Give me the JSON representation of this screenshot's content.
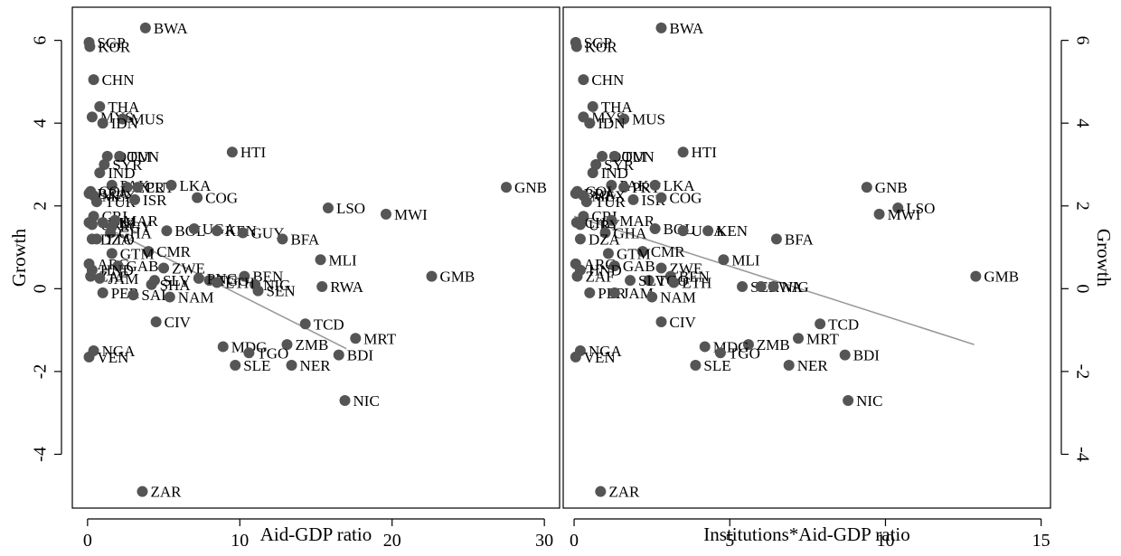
{
  "chart_data": [
    {
      "type": "scatter",
      "title": "",
      "xlabel": "Aid-GDP ratio",
      "ylabel": "Growth",
      "xlim": [
        -1,
        31
      ],
      "ylim": [
        -5.3,
        6.8
      ],
      "xticks": [
        0,
        10,
        20,
        30
      ],
      "yticks": [
        6,
        4,
        2,
        0,
        -2,
        -4
      ],
      "fit_line": {
        "x": [
          0,
          17
        ],
        "y": [
          1.7,
          -1.45
        ]
      },
      "points": [
        {
          "label": "BWA",
          "x": 3.8,
          "y": 6.3
        },
        {
          "label": "SGP",
          "x": 0.1,
          "y": 5.95
        },
        {
          "label": "KOR",
          "x": 0.15,
          "y": 5.85
        },
        {
          "label": "CHN",
          "x": 0.4,
          "y": 5.05
        },
        {
          "label": "THA",
          "x": 0.8,
          "y": 4.4
        },
        {
          "label": "MYS",
          "x": 0.3,
          "y": 4.15
        },
        {
          "label": "MUS",
          "x": 2.3,
          "y": 4.1
        },
        {
          "label": "IDN",
          "x": 1.0,
          "y": 4.0
        },
        {
          "label": "HTI",
          "x": 9.5,
          "y": 3.3
        },
        {
          "label": "DOM",
          "x": 1.3,
          "y": 3.2
        },
        {
          "label": "TUN",
          "x": 2.1,
          "y": 3.2
        },
        {
          "label": "SYR",
          "x": 1.1,
          "y": 3.0
        },
        {
          "label": "IND",
          "x": 0.8,
          "y": 2.8
        },
        {
          "label": "PAK",
          "x": 1.6,
          "y": 2.5
        },
        {
          "label": "ECU",
          "x": 2.6,
          "y": 2.45
        },
        {
          "label": "PRY",
          "x": 3.3,
          "y": 2.45
        },
        {
          "label": "LKA",
          "x": 5.5,
          "y": 2.5
        },
        {
          "label": "GNB",
          "x": 27.5,
          "y": 2.45
        },
        {
          "label": "COL",
          "x": 0.2,
          "y": 2.35
        },
        {
          "label": "BRA",
          "x": 0.1,
          "y": 2.3
        },
        {
          "label": "MEX",
          "x": 0.4,
          "y": 2.25
        },
        {
          "label": "TUR",
          "x": 0.6,
          "y": 2.1
        },
        {
          "label": "ISR",
          "x": 3.1,
          "y": 2.15
        },
        {
          "label": "COG",
          "x": 7.2,
          "y": 2.2
        },
        {
          "label": "LSO",
          "x": 15.8,
          "y": 1.95
        },
        {
          "label": "MWI",
          "x": 19.6,
          "y": 1.8
        },
        {
          "label": "CRI",
          "x": 0.4,
          "y": 1.75
        },
        {
          "label": "CHL",
          "x": 0.1,
          "y": 1.6
        },
        {
          "label": "URY",
          "x": 0.3,
          "y": 1.55
        },
        {
          "label": "PHL",
          "x": 1.0,
          "y": 1.6
        },
        {
          "label": "MAR",
          "x": 1.8,
          "y": 1.65
        },
        {
          "label": "EGY",
          "x": 1.6,
          "y": 1.5
        },
        {
          "label": "BOL",
          "x": 5.2,
          "y": 1.4
        },
        {
          "label": "UGA",
          "x": 7.0,
          "y": 1.45
        },
        {
          "label": "KEN",
          "x": 8.5,
          "y": 1.4
        },
        {
          "label": "GUY",
          "x": 10.2,
          "y": 1.35
        },
        {
          "label": "BFA",
          "x": 12.8,
          "y": 1.2
        },
        {
          "label": "GHA",
          "x": 1.5,
          "y": 1.35
        },
        {
          "label": "DZA",
          "x": 0.3,
          "y": 1.2
        },
        {
          "label": "TTO",
          "x": 0.6,
          "y": 1.2
        },
        {
          "label": "CMR",
          "x": 4.0,
          "y": 0.9
        },
        {
          "label": "GTM",
          "x": 1.6,
          "y": 0.85
        },
        {
          "label": "MLI",
          "x": 15.3,
          "y": 0.7
        },
        {
          "label": "ARG",
          "x": 0.1,
          "y": 0.6
        },
        {
          "label": "GAB",
          "x": 2.0,
          "y": 0.55
        },
        {
          "label": "ZWE",
          "x": 5.0,
          "y": 0.5
        },
        {
          "label": "HND",
          "x": 0.3,
          "y": 0.45
        },
        {
          "label": "ZAF",
          "x": 0.2,
          "y": 0.3
        },
        {
          "label": "JAM",
          "x": 0.8,
          "y": 0.25
        },
        {
          "label": "GMB",
          "x": 22.6,
          "y": 0.3
        },
        {
          "label": "TGO",
          "x": 8.0,
          "y": 0.2
        },
        {
          "label": "BEN",
          "x": 10.3,
          "y": 0.3
        },
        {
          "label": "PNG",
          "x": 7.3,
          "y": 0.25
        },
        {
          "label": "NIG",
          "x": 11.0,
          "y": 0.1
        },
        {
          "label": "ETH",
          "x": 8.5,
          "y": 0.15
        },
        {
          "label": "SLV",
          "x": 4.4,
          "y": 0.2
        },
        {
          "label": "SHA",
          "x": 4.2,
          "y": 0.1
        },
        {
          "label": "RWA",
          "x": 15.4,
          "y": 0.05
        },
        {
          "label": "SEN",
          "x": 11.2,
          "y": -0.05
        },
        {
          "label": "PER",
          "x": 1.0,
          "y": -0.1
        },
        {
          "label": "SAL",
          "x": 3.0,
          "y": -0.15
        },
        {
          "label": "NAM",
          "x": 5.4,
          "y": -0.2
        },
        {
          "label": "CIV",
          "x": 4.5,
          "y": -0.8
        },
        {
          "label": "TCD",
          "x": 14.3,
          "y": -0.85
        },
        {
          "label": "MRT",
          "x": 17.6,
          "y": -1.2
        },
        {
          "label": "ZMB",
          "x": 13.1,
          "y": -1.35
        },
        {
          "label": "MDG",
          "x": 8.9,
          "y": -1.4
        },
        {
          "label": "TGO",
          "x": 10.6,
          "y": -1.55
        },
        {
          "label": "BDI",
          "x": 16.5,
          "y": -1.6
        },
        {
          "label": "NGA",
          "x": 0.4,
          "y": -1.5
        },
        {
          "label": "VEN",
          "x": 0.1,
          "y": -1.65
        },
        {
          "label": "SLE",
          "x": 9.7,
          "y": -1.85
        },
        {
          "label": "NER",
          "x": 13.4,
          "y": -1.85
        },
        {
          "label": "NIC",
          "x": 16.9,
          "y": -2.7
        },
        {
          "label": "ZAR",
          "x": 3.6,
          "y": -4.9
        }
      ]
    },
    {
      "type": "scatter",
      "title": "",
      "xlabel": "Institutions*Aid-GDP ratio",
      "ylabel": "Growth",
      "xlim": [
        -0.35,
        15.3
      ],
      "ylim": [
        -5.3,
        6.8
      ],
      "xticks": [
        0,
        5,
        10,
        15
      ],
      "yticks": [
        6,
        4,
        2,
        0,
        -2,
        -4
      ],
      "fit_line": {
        "x": [
          0,
          12.85
        ],
        "y": [
          1.75,
          -1.35
        ]
      },
      "points": [
        {
          "label": "BWA",
          "x": 2.8,
          "y": 6.3
        },
        {
          "label": "SGP",
          "x": 0.05,
          "y": 5.95
        },
        {
          "label": "KOR",
          "x": 0.08,
          "y": 5.85
        },
        {
          "label": "CHN",
          "x": 0.3,
          "y": 5.05
        },
        {
          "label": "THA",
          "x": 0.6,
          "y": 4.4
        },
        {
          "label": "MYS",
          "x": 0.3,
          "y": 4.15
        },
        {
          "label": "MUS",
          "x": 1.6,
          "y": 4.1
        },
        {
          "label": "IDN",
          "x": 0.5,
          "y": 4.0
        },
        {
          "label": "HTI",
          "x": 3.5,
          "y": 3.3
        },
        {
          "label": "DOM",
          "x": 0.9,
          "y": 3.2
        },
        {
          "label": "TUN",
          "x": 1.3,
          "y": 3.2
        },
        {
          "label": "SYR",
          "x": 0.7,
          "y": 3.0
        },
        {
          "label": "IND",
          "x": 0.6,
          "y": 2.8
        },
        {
          "label": "GNB",
          "x": 9.4,
          "y": 2.45
        },
        {
          "label": "PAK",
          "x": 1.2,
          "y": 2.5
        },
        {
          "label": "PRY",
          "x": 1.6,
          "y": 2.45
        },
        {
          "label": "LKA",
          "x": 2.6,
          "y": 2.5
        },
        {
          "label": "COL",
          "x": 0.1,
          "y": 2.35
        },
        {
          "label": "BRA",
          "x": 0.05,
          "y": 2.3
        },
        {
          "label": "MEX",
          "x": 0.3,
          "y": 2.25
        },
        {
          "label": "TUR",
          "x": 0.4,
          "y": 2.1
        },
        {
          "label": "ISR",
          "x": 1.9,
          "y": 2.15
        },
        {
          "label": "COG",
          "x": 2.8,
          "y": 2.2
        },
        {
          "label": "LSO",
          "x": 10.4,
          "y": 1.95
        },
        {
          "label": "MWI",
          "x": 9.8,
          "y": 1.8
        },
        {
          "label": "CRI",
          "x": 0.3,
          "y": 1.75
        },
        {
          "label": "CHL",
          "x": 0.08,
          "y": 1.6
        },
        {
          "label": "MAR",
          "x": 1.2,
          "y": 1.65
        },
        {
          "label": "URY",
          "x": 0.2,
          "y": 1.55
        },
        {
          "label": "BOL",
          "x": 2.6,
          "y": 1.45
        },
        {
          "label": "UGA",
          "x": 3.5,
          "y": 1.4
        },
        {
          "label": "KEN",
          "x": 4.3,
          "y": 1.4
        },
        {
          "label": "BFA",
          "x": 6.5,
          "y": 1.2
        },
        {
          "label": "GHA",
          "x": 1.0,
          "y": 1.35
        },
        {
          "label": "DZA",
          "x": 0.2,
          "y": 1.2
        },
        {
          "label": "CMR",
          "x": 2.2,
          "y": 0.9
        },
        {
          "label": "GTM",
          "x": 1.1,
          "y": 0.85
        },
        {
          "label": "MLI",
          "x": 4.8,
          "y": 0.7
        },
        {
          "label": "ARG",
          "x": 0.05,
          "y": 0.6
        },
        {
          "label": "GAB",
          "x": 1.3,
          "y": 0.55
        },
        {
          "label": "ZWE",
          "x": 2.8,
          "y": 0.5
        },
        {
          "label": "HND",
          "x": 0.2,
          "y": 0.45
        },
        {
          "label": "ZAF",
          "x": 0.1,
          "y": 0.3
        },
        {
          "label": "GMB",
          "x": 12.9,
          "y": 0.3
        },
        {
          "label": "BEN",
          "x": 3.1,
          "y": 0.3
        },
        {
          "label": "TGO",
          "x": 2.4,
          "y": 0.2
        },
        {
          "label": "ETH",
          "x": 3.2,
          "y": 0.15
        },
        {
          "label": "SLV",
          "x": 1.8,
          "y": 0.2
        },
        {
          "label": "SEN",
          "x": 5.4,
          "y": 0.05
        },
        {
          "label": "RWA",
          "x": 6.0,
          "y": 0.05
        },
        {
          "label": "NIG",
          "x": 6.4,
          "y": 0.05
        },
        {
          "label": "PER",
          "x": 0.5,
          "y": -0.1
        },
        {
          "label": "JAM",
          "x": 1.3,
          "y": -0.1
        },
        {
          "label": "NAM",
          "x": 2.5,
          "y": -0.2
        },
        {
          "label": "CIV",
          "x": 2.8,
          "y": -0.8
        },
        {
          "label": "TCD",
          "x": 7.9,
          "y": -0.85
        },
        {
          "label": "MRT",
          "x": 7.2,
          "y": -1.2
        },
        {
          "label": "ZMB",
          "x": 5.6,
          "y": -1.35
        },
        {
          "label": "MDG",
          "x": 4.2,
          "y": -1.4
        },
        {
          "label": "TGO",
          "x": 4.7,
          "y": -1.55
        },
        {
          "label": "BDI",
          "x": 8.7,
          "y": -1.6
        },
        {
          "label": "NGA",
          "x": 0.2,
          "y": -1.5
        },
        {
          "label": "VEN",
          "x": 0.05,
          "y": -1.65
        },
        {
          "label": "SLE",
          "x": 3.9,
          "y": -1.85
        },
        {
          "label": "NER",
          "x": 6.9,
          "y": -1.85
        },
        {
          "label": "NIC",
          "x": 8.8,
          "y": -2.7
        },
        {
          "label": "ZAR",
          "x": 0.85,
          "y": -4.9
        }
      ]
    }
  ]
}
